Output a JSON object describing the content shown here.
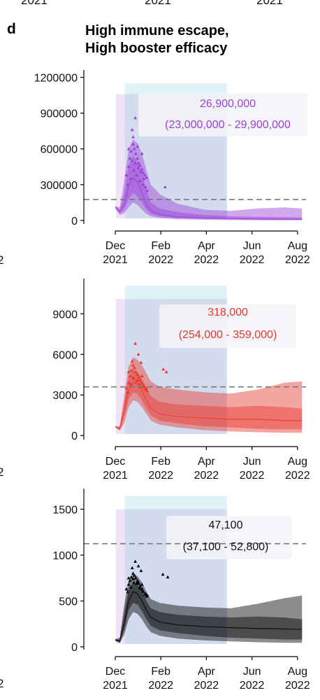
{
  "panel_letter": "d",
  "title_lines": [
    "High immune escape,",
    "High booster efficacy"
  ],
  "top_cut_labels": [
    "2021",
    "2021",
    "2021"
  ],
  "left_edge_labels": [
    "2",
    "2",
    "2"
  ],
  "colors": {
    "purple": "#9b3fd6",
    "red": "#e8382e",
    "black": "#000000",
    "cyan_shade": "#dff2f8",
    "lavender_shade": "#efe4f6",
    "blue_shade": "#d3dcef",
    "annotation_box": "#f3f4f8"
  },
  "chart_data": [
    {
      "type": "area",
      "series_color": "#9b3fd6",
      "yticks": [
        0,
        300000,
        600000,
        900000,
        1200000
      ],
      "ytick_labels": [
        "0",
        "300000",
        "600000",
        "900000",
        "1200000"
      ],
      "ylim": [
        -30000,
        1250000
      ],
      "xticks": [
        "Dec\n2021",
        "Feb\n2022",
        "Apr\n2022",
        "Jun\n2022",
        "Aug\n2022"
      ],
      "dashed_threshold": 175000,
      "shade_top": 1150000,
      "shade_lavender_top": 1060000,
      "annotation": {
        "value": "26,900,000",
        "range": "(23,000,000 - 29,900,000"
      },
      "median": [
        [
          0.0,
          110000
        ],
        [
          0.1,
          75000
        ],
        [
          0.2,
          130000
        ],
        [
          0.3,
          290000
        ],
        [
          0.4,
          360000
        ],
        [
          0.5,
          320000
        ],
        [
          0.6,
          230000
        ],
        [
          0.7,
          130000
        ],
        [
          0.8,
          80000
        ],
        [
          1.0,
          50000
        ],
        [
          1.4,
          30000
        ],
        [
          2.0,
          20000
        ],
        [
          2.6,
          15000
        ],
        [
          3.2,
          12000
        ],
        [
          3.8,
          10000
        ],
        [
          4.2,
          10000
        ]
      ],
      "inner": [
        [
          0.0,
          105000,
          115000
        ],
        [
          0.1,
          60000,
          90000
        ],
        [
          0.2,
          90000,
          220000
        ],
        [
          0.3,
          180000,
          460000
        ],
        [
          0.4,
          230000,
          540000
        ],
        [
          0.5,
          200000,
          500000
        ],
        [
          0.6,
          150000,
          400000
        ],
        [
          0.7,
          90000,
          250000
        ],
        [
          0.8,
          55000,
          150000
        ],
        [
          1.0,
          35000,
          100000
        ],
        [
          1.4,
          20000,
          70000
        ],
        [
          2.0,
          12000,
          45000
        ],
        [
          2.6,
          8000,
          35000
        ],
        [
          3.2,
          5000,
          30000
        ],
        [
          3.8,
          4000,
          28000
        ],
        [
          4.2,
          4000,
          25000
        ]
      ],
      "outer": [
        [
          0.0,
          100000,
          120000
        ],
        [
          0.1,
          45000,
          110000
        ],
        [
          0.2,
          60000,
          330000
        ],
        [
          0.3,
          110000,
          600000
        ],
        [
          0.4,
          150000,
          680000
        ],
        [
          0.5,
          130000,
          650000
        ],
        [
          0.6,
          90000,
          560000
        ],
        [
          0.7,
          55000,
          420000
        ],
        [
          0.8,
          35000,
          300000
        ],
        [
          1.0,
          20000,
          220000
        ],
        [
          1.4,
          10000,
          140000
        ],
        [
          2.0,
          5000,
          90000
        ],
        [
          2.6,
          3000,
          80000
        ],
        [
          3.2,
          2000,
          100000
        ],
        [
          3.8,
          1500,
          110000
        ],
        [
          4.2,
          1500,
          100000
        ]
      ],
      "observed": [
        [
          0.25,
          380000
        ],
        [
          0.3,
          450000
        ],
        [
          0.33,
          520000
        ],
        [
          0.36,
          580000
        ],
        [
          0.4,
          640000
        ],
        [
          0.43,
          600000
        ],
        [
          0.46,
          560000
        ],
        [
          0.5,
          520000
        ],
        [
          0.53,
          480000
        ],
        [
          0.56,
          460000
        ],
        [
          0.6,
          430000
        ],
        [
          0.63,
          400000
        ],
        [
          0.66,
          380000
        ],
        [
          0.7,
          360000
        ],
        [
          0.28,
          300000
        ],
        [
          0.35,
          350000
        ],
        [
          0.42,
          420000
        ],
        [
          0.48,
          380000
        ],
        [
          0.55,
          330000
        ],
        [
          0.62,
          300000
        ],
        [
          0.68,
          280000
        ],
        [
          0.72,
          250000
        ],
        [
          0.38,
          500000
        ],
        [
          0.45,
          480000
        ],
        [
          0.52,
          440000
        ],
        [
          0.58,
          410000
        ],
        [
          0.64,
          350000
        ],
        [
          0.3,
          600000
        ],
        [
          0.4,
          700000
        ],
        [
          0.5,
          620000
        ],
        [
          0.6,
          560000
        ],
        [
          0.45,
          860000
        ],
        [
          0.38,
          760000
        ],
        [
          1.12,
          280000
        ]
      ]
    },
    {
      "type": "area",
      "series_color": "#e8382e",
      "yticks": [
        0,
        3000,
        6000,
        9000
      ],
      "ytick_labels": [
        "0",
        "3000",
        "6000",
        "9000"
      ],
      "ylim": [
        -300,
        11500
      ],
      "xticks": [
        "Dec\n2021",
        "Feb\n2022",
        "Apr\n2022",
        "Jun\n2022",
        "Aug\n2022"
      ],
      "dashed_threshold": 3600,
      "shade_top": 11100,
      "shade_lavender_top": 10100,
      "annotation": {
        "value": "318,000",
        "range": "(254,000 - 359,000)"
      },
      "median": [
        [
          0.0,
          650
        ],
        [
          0.1,
          500
        ],
        [
          0.2,
          1800
        ],
        [
          0.3,
          3400
        ],
        [
          0.4,
          3900
        ],
        [
          0.5,
          3800
        ],
        [
          0.6,
          3300
        ],
        [
          0.7,
          2600
        ],
        [
          0.8,
          2000
        ],
        [
          1.0,
          1600
        ],
        [
          1.4,
          1400
        ],
        [
          2.0,
          1300
        ],
        [
          2.6,
          1200
        ],
        [
          3.2,
          1200
        ],
        [
          3.8,
          1100
        ],
        [
          4.2,
          1100
        ]
      ],
      "inner": [
        [
          0.0,
          620,
          680
        ],
        [
          0.1,
          420,
          600
        ],
        [
          0.2,
          1300,
          2400
        ],
        [
          0.3,
          2700,
          4300
        ],
        [
          0.4,
          3200,
          4900
        ],
        [
          0.5,
          3100,
          4700
        ],
        [
          0.6,
          2600,
          4200
        ],
        [
          0.7,
          2000,
          3500
        ],
        [
          0.8,
          1500,
          2900
        ],
        [
          1.0,
          1100,
          2500
        ],
        [
          1.4,
          900,
          2300
        ],
        [
          2.0,
          700,
          2200
        ],
        [
          2.6,
          600,
          2100
        ],
        [
          3.2,
          500,
          2200
        ],
        [
          3.8,
          450,
          2100
        ],
        [
          4.2,
          450,
          2000
        ]
      ],
      "outer": [
        [
          0.0,
          600,
          700
        ],
        [
          0.1,
          350,
          700
        ],
        [
          0.2,
          900,
          2900
        ],
        [
          0.3,
          2100,
          5100
        ],
        [
          0.4,
          2600,
          5800
        ],
        [
          0.5,
          2500,
          5600
        ],
        [
          0.6,
          2100,
          5200
        ],
        [
          0.7,
          1600,
          4600
        ],
        [
          0.8,
          1100,
          4000
        ],
        [
          1.0,
          800,
          3600
        ],
        [
          1.4,
          600,
          3400
        ],
        [
          2.0,
          400,
          3200
        ],
        [
          2.6,
          300,
          3100
        ],
        [
          3.2,
          250,
          3400
        ],
        [
          3.8,
          200,
          3900
        ],
        [
          4.2,
          200,
          4000
        ]
      ],
      "observed": [
        [
          0.25,
          3500
        ],
        [
          0.3,
          3900
        ],
        [
          0.33,
          4400
        ],
        [
          0.36,
          4800
        ],
        [
          0.4,
          5200
        ],
        [
          0.43,
          5000
        ],
        [
          0.46,
          4700
        ],
        [
          0.5,
          4500
        ],
        [
          0.53,
          4300
        ],
        [
          0.56,
          4100
        ],
        [
          0.6,
          3900
        ],
        [
          0.63,
          3700
        ],
        [
          0.66,
          3600
        ],
        [
          0.7,
          3500
        ],
        [
          0.28,
          3200
        ],
        [
          0.35,
          3800
        ],
        [
          0.42,
          4200
        ],
        [
          0.48,
          4000
        ],
        [
          0.55,
          3800
        ],
        [
          0.62,
          3600
        ],
        [
          0.68,
          3400
        ],
        [
          0.72,
          3300
        ],
        [
          0.38,
          5500
        ],
        [
          0.45,
          6800
        ],
        [
          0.52,
          6000
        ],
        [
          0.58,
          5400
        ],
        [
          0.3,
          4700
        ],
        [
          0.4,
          4300
        ],
        [
          0.5,
          4100
        ],
        [
          0.6,
          4400
        ],
        [
          1.08,
          4900
        ],
        [
          1.15,
          4700
        ]
      ]
    },
    {
      "type": "area",
      "series_color": "#000000",
      "yticks": [
        0,
        500,
        1000,
        1500
      ],
      "ytick_labels": [
        "0",
        "500",
        "1000",
        "1500"
      ],
      "ylim": [
        -30,
        1710
      ],
      "xticks": [
        "Dec\n2021",
        "Feb\n2022",
        "Apr\n2022",
        "Jun\n2022",
        "Aug\n2022"
      ],
      "dashed_threshold": 1125,
      "shade_top": 1645,
      "shade_lavender_top": 1500,
      "annotation": {
        "value": "47,100",
        "range": "(37,100 - 52,800)"
      },
      "median": [
        [
          0.0,
          75
        ],
        [
          0.1,
          60
        ],
        [
          0.2,
          250
        ],
        [
          0.3,
          500
        ],
        [
          0.4,
          600
        ],
        [
          0.5,
          580
        ],
        [
          0.6,
          500
        ],
        [
          0.7,
          400
        ],
        [
          0.8,
          320
        ],
        [
          1.0,
          270
        ],
        [
          1.4,
          240
        ],
        [
          2.0,
          220
        ],
        [
          2.6,
          210
        ],
        [
          3.2,
          200
        ],
        [
          3.8,
          195
        ],
        [
          4.2,
          190
        ]
      ],
      "inner": [
        [
          0.0,
          70,
          80
        ],
        [
          0.1,
          50,
          80
        ],
        [
          0.2,
          180,
          360
        ],
        [
          0.3,
          400,
          620
        ],
        [
          0.4,
          480,
          700
        ],
        [
          0.5,
          460,
          680
        ],
        [
          0.6,
          390,
          600
        ],
        [
          0.7,
          300,
          500
        ],
        [
          0.8,
          230,
          420
        ],
        [
          1.0,
          180,
          380
        ],
        [
          1.4,
          150,
          350
        ],
        [
          2.0,
          120,
          330
        ],
        [
          2.6,
          100,
          320
        ],
        [
          3.2,
          90,
          330
        ],
        [
          3.8,
          80,
          320
        ],
        [
          4.2,
          80,
          300
        ]
      ],
      "outer": [
        [
          0.0,
          65,
          85
        ],
        [
          0.1,
          40,
          100
        ],
        [
          0.2,
          130,
          450
        ],
        [
          0.3,
          300,
          720
        ],
        [
          0.4,
          380,
          800
        ],
        [
          0.5,
          360,
          770
        ],
        [
          0.6,
          300,
          700
        ],
        [
          0.7,
          220,
          600
        ],
        [
          0.8,
          160,
          520
        ],
        [
          1.0,
          120,
          480
        ],
        [
          1.4,
          90,
          450
        ],
        [
          2.0,
          70,
          430
        ],
        [
          2.6,
          60,
          420
        ],
        [
          3.2,
          50,
          470
        ],
        [
          3.8,
          45,
          530
        ],
        [
          4.2,
          45,
          560
        ]
      ],
      "observed": [
        [
          0.25,
          630
        ],
        [
          0.3,
          680
        ],
        [
          0.33,
          720
        ],
        [
          0.36,
          760
        ],
        [
          0.4,
          800
        ],
        [
          0.43,
          780
        ],
        [
          0.46,
          750
        ],
        [
          0.5,
          720
        ],
        [
          0.53,
          690
        ],
        [
          0.56,
          660
        ],
        [
          0.6,
          630
        ],
        [
          0.63,
          600
        ],
        [
          0.66,
          570
        ],
        [
          0.7,
          550
        ],
        [
          0.28,
          600
        ],
        [
          0.35,
          650
        ],
        [
          0.42,
          700
        ],
        [
          0.48,
          690
        ],
        [
          0.55,
          640
        ],
        [
          0.62,
          610
        ],
        [
          0.68,
          580
        ],
        [
          0.72,
          560
        ],
        [
          0.38,
          860
        ],
        [
          0.45,
          930
        ],
        [
          0.52,
          880
        ],
        [
          0.58,
          830
        ],
        [
          0.3,
          750
        ],
        [
          0.4,
          740
        ],
        [
          0.5,
          700
        ],
        [
          0.6,
          680
        ],
        [
          1.07,
          790
        ],
        [
          1.18,
          760
        ]
      ]
    }
  ]
}
